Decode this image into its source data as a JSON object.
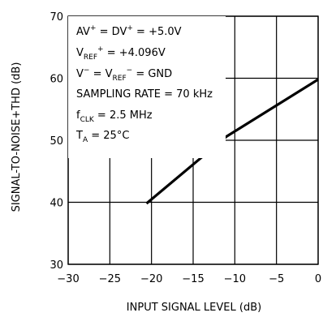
{
  "chart_data": {
    "type": "line",
    "xlabel": "INPUT SIGNAL LEVEL (dB)",
    "ylabel": "SIGNAL-TO-NOISE+THD (dB)",
    "xlim": [
      -30,
      0
    ],
    "ylim": [
      30,
      70
    ],
    "xticks": [
      -30,
      -25,
      -20,
      -15,
      -10,
      -5,
      0
    ],
    "yticks": [
      30,
      40,
      50,
      60,
      70
    ],
    "xtick_labels": [
      "−30",
      "−25",
      "−20",
      "−15",
      "−10",
      "−5",
      "0"
    ],
    "ytick_labels": [
      "30",
      "40",
      "50",
      "60",
      "70"
    ],
    "grid": true,
    "series": [
      {
        "x": [
          -20.6,
          -11.0,
          0
        ],
        "y": [
          39.8,
          50.6,
          59.8
        ]
      }
    ],
    "conditions": {
      "line1": {
        "a": "AV",
        "sup_a": "+",
        "b": " = DV",
        "sup_b": "+",
        "c": " = +5.0V"
      },
      "line2": {
        "a": "V",
        "sub_a": "REF",
        "sup_a": "+",
        "c": " = +4.096V"
      },
      "line3": {
        "a": "V",
        "sup_a": "−",
        "b": " = V",
        "sub_b": "REF",
        "sup_b": "−",
        "c": " = GND"
      },
      "line4": "SAMPLING RATE = 70 kHz",
      "line5": {
        "a": "f",
        "sub_a": "CLK",
        "c": " = 2.5 MHz"
      },
      "line6": {
        "a": "T",
        "sub_a": "A",
        "c": " = 25°C"
      }
    },
    "colors": {
      "line": "#000000",
      "grid": "#000000",
      "background": "#ffffff"
    }
  }
}
